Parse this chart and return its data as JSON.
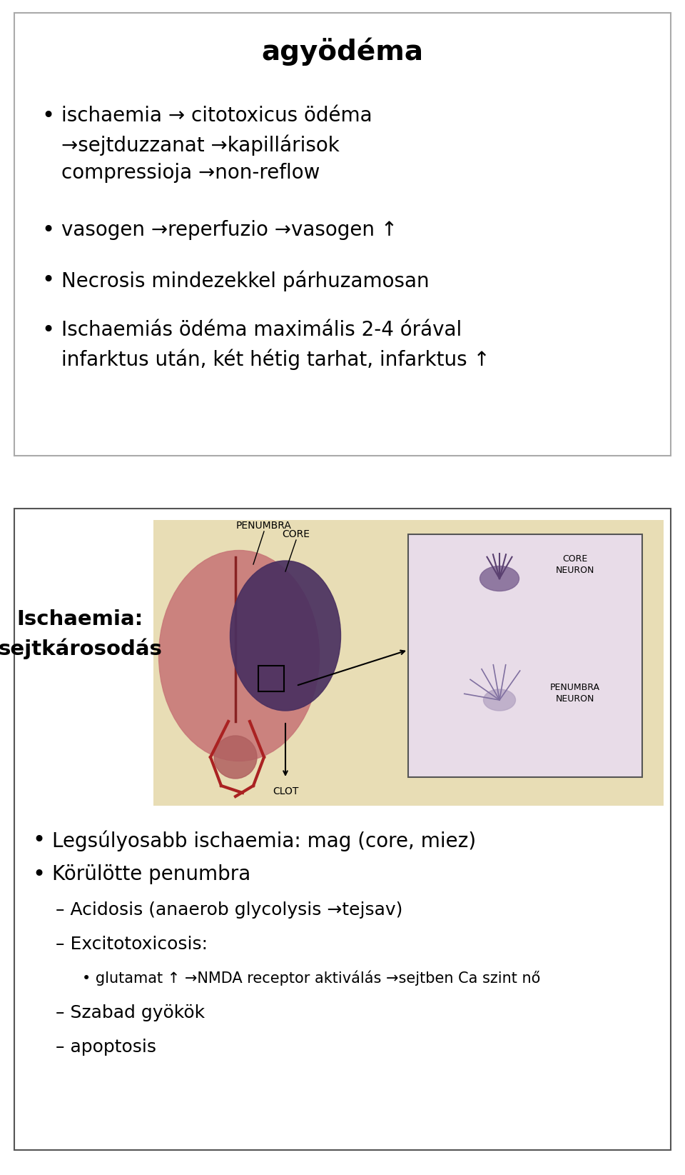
{
  "bg_color": "#ffffff",
  "box1_border": "#aaaaaa",
  "box2_border": "#555555",
  "title": "agyödéma",
  "title_fontsize": 28,
  "bullet1_lines": [
    "ischaemia → citotoxicus ödéma",
    "→sejtduzzanat →kapillárisok",
    "compressioja →non-reflow"
  ],
  "bullet2": "vasogen →reperfuzio →vasogen ↑",
  "bullet3": "Necrosis mindezekkel párhuzamosan",
  "bullet4_lines": [
    "Ischaemiás ödéma maximális 2-4 órával",
    "infarktus után, két hétig tarhat, infarktus ↑"
  ],
  "ischaemia_title": "Ischaemia:\nsejtkárosodás",
  "ischaemia_title_fontsize": 21,
  "bullet_fontsize": 20,
  "sub_bullet_fontsize": 18,
  "sub_sub_fontsize": 15,
  "bottom_bullets": [
    "Legsúlyosabb ischaemia: mag (core, miez)",
    "Körülötte penumbra"
  ],
  "sub_items": [
    "Acidosis (anaerob glycolysis →tejsav)",
    "Excitotoxicosis:",
    "Szabad gyökök",
    "apoptosis"
  ],
  "sub_sub_item": "glutamat ↑ →NMDA receptor aktiválás →sejtben Ca szint nő",
  "img_bg_color": "#e8ddb5",
  "inset_bg_color": "#e8dce8",
  "brain_color": "#c87878",
  "core_color": "#4a3060",
  "penumbra_label": "PENUMBRA",
  "core_label": "CORE",
  "clot_label": "CLOT",
  "core_neuron_label": "CORE\nNEURON",
  "penumbra_neuron_label": "PENUMBRA\nNEURON"
}
